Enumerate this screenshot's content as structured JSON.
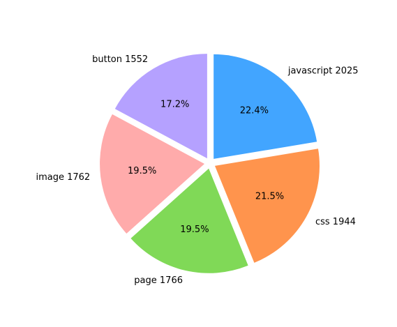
{
  "chart_data": {
    "type": "pie",
    "title": "",
    "slices": [
      {
        "label": "javascript 2025",
        "value": 2025,
        "percent_label": "22.4%",
        "color": "#42a5ff"
      },
      {
        "label": "css 1944",
        "value": 1944,
        "percent_label": "21.5%",
        "color": "#ff944d"
      },
      {
        "label": "page 1766",
        "value": 1766,
        "percent_label": "19.5%",
        "color": "#80d957"
      },
      {
        "label": "image 1762",
        "value": 1762,
        "percent_label": "19.5%",
        "color": "#ffabab"
      },
      {
        "label": "button 1552",
        "value": 1552,
        "percent_label": "17.2%",
        "color": "#b5a1ff"
      }
    ],
    "start_angle_deg": 90,
    "direction": "clockwise",
    "exploded": true,
    "legend": "none"
  }
}
